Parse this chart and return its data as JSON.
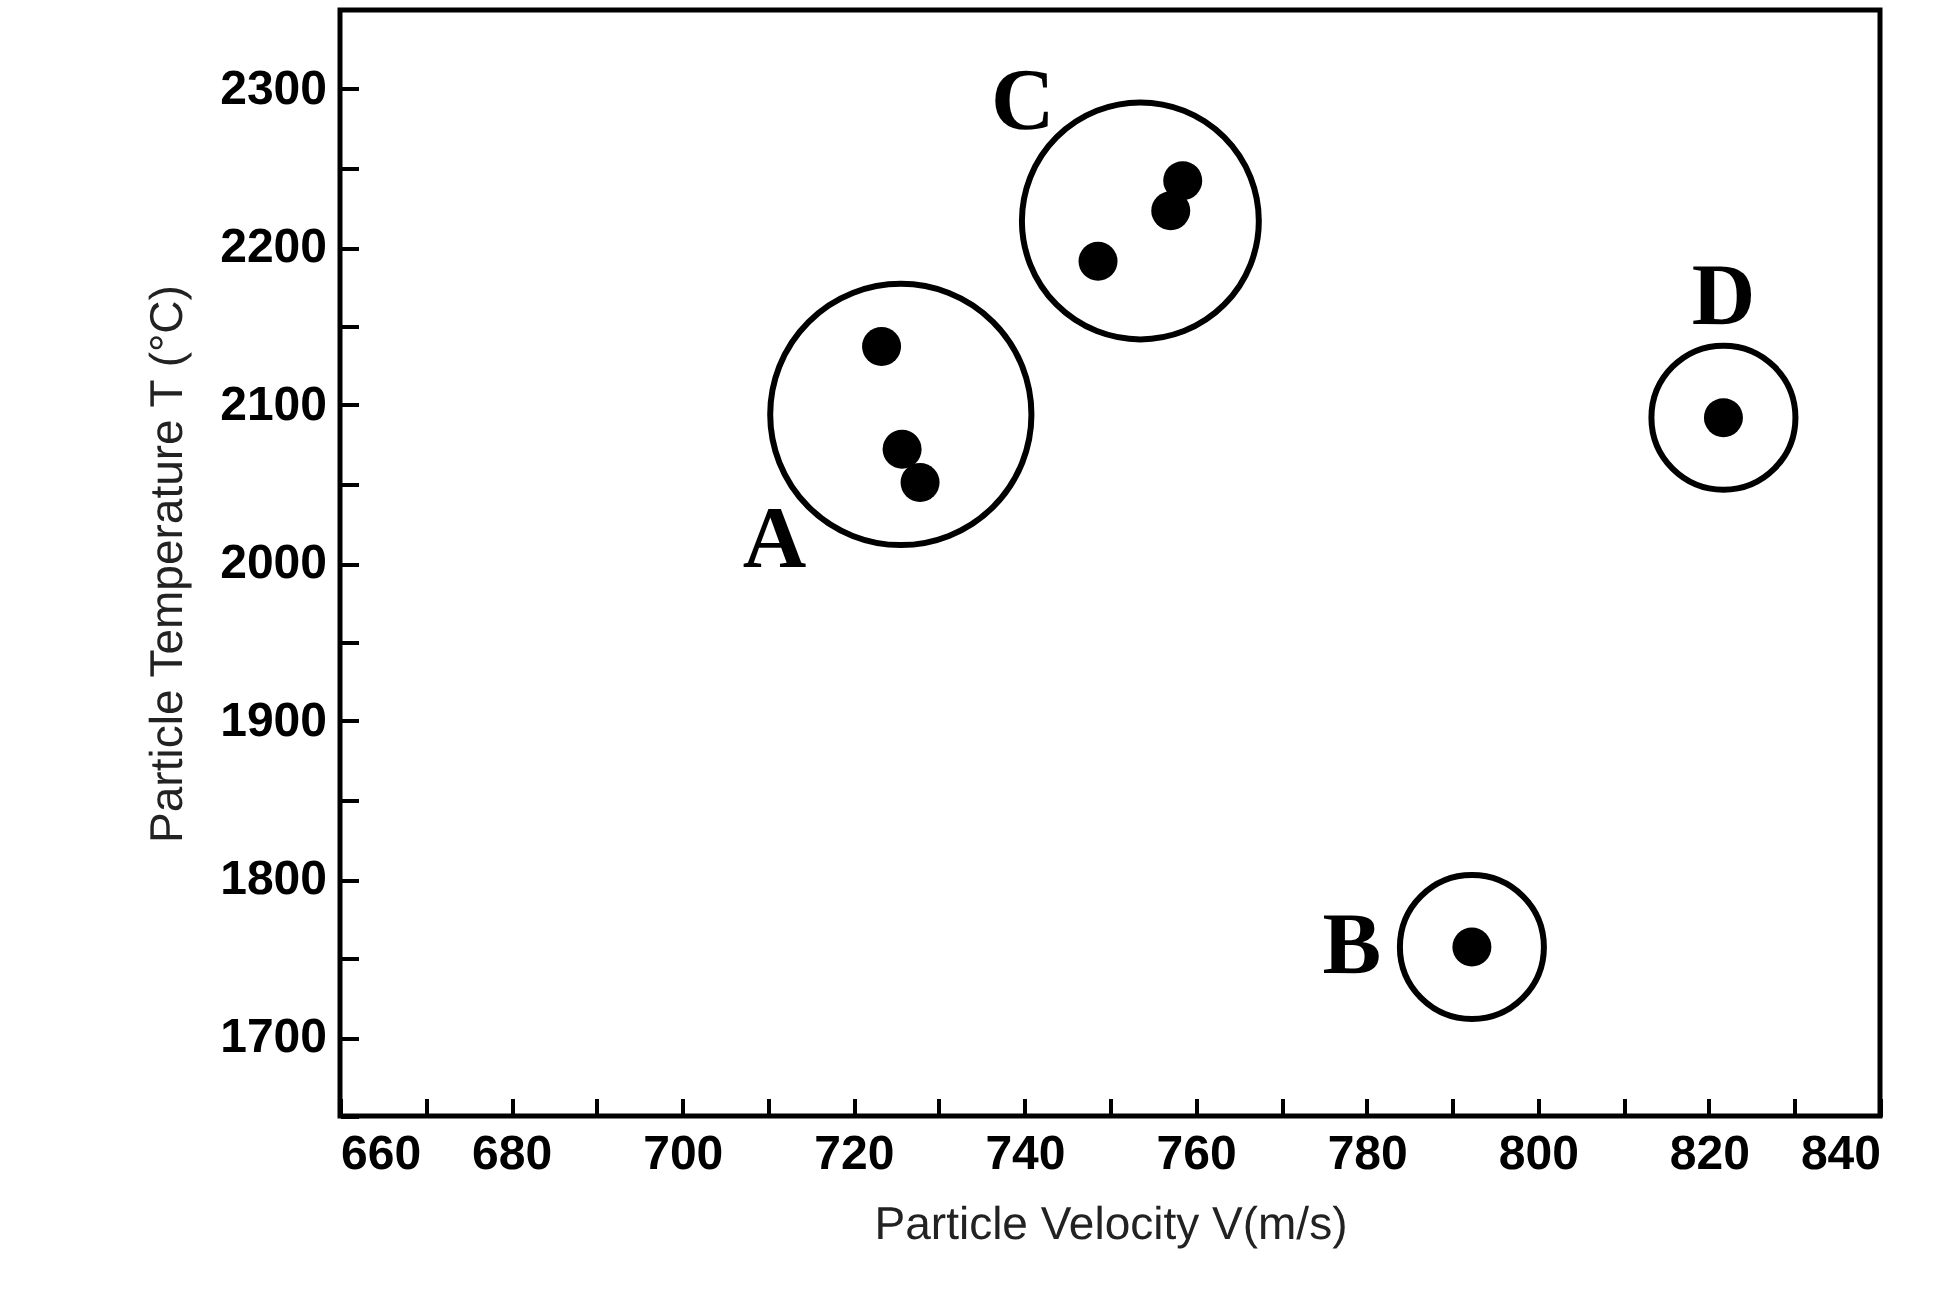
{
  "chart_data": {
    "type": "scatter",
    "xlabel": "Particle Velocity V(m/s)",
    "ylabel": "Particle Temperature T (°C)",
    "xlim": [
      660,
      840
    ],
    "ylim": [
      1650,
      2350
    ],
    "xticks": [
      660,
      {
        "value": 670,
        "label": null
      },
      680,
      {
        "value": 690,
        "label": null
      },
      700,
      {
        "value": 710,
        "label": null
      },
      720,
      {
        "value": 730,
        "label": null
      },
      740,
      {
        "value": 750,
        "label": null
      },
      760,
      {
        "value": 770,
        "label": null
      },
      780,
      {
        "value": 790,
        "label": null
      },
      800,
      {
        "value": 810,
        "label": null
      },
      820,
      {
        "value": 830,
        "label": null
      },
      840
    ],
    "yticks": [
      {
        "value": 1650,
        "label": null
      },
      1700,
      {
        "value": 1750,
        "label": null
      },
      1800,
      {
        "value": 1850,
        "label": null
      },
      1900,
      {
        "value": 1950,
        "label": null
      },
      2000,
      {
        "value": 2050,
        "label": null
      },
      2100,
      {
        "value": 2150,
        "label": null
      },
      2200,
      {
        "value": 2250,
        "label": null
      },
      2300
    ],
    "marker": "circle",
    "grid": false,
    "series": [
      {
        "name": "A",
        "color": "#000000",
        "x": [
          723.3,
          725.7,
          727.8
        ],
        "values": [
          2137,
          2072,
          2051
        ]
      },
      {
        "name": "B",
        "color": "#000000",
        "x": [
          792.3
        ],
        "values": [
          1757
        ]
      },
      {
        "name": "C",
        "color": "#000000",
        "x": [
          748.6,
          757.1,
          758.5
        ],
        "values": [
          2191,
          2223,
          2242
        ]
      },
      {
        "name": "D",
        "color": "#000000",
        "x": [
          821.7
        ],
        "values": [
          2092
        ]
      }
    ]
  }
}
